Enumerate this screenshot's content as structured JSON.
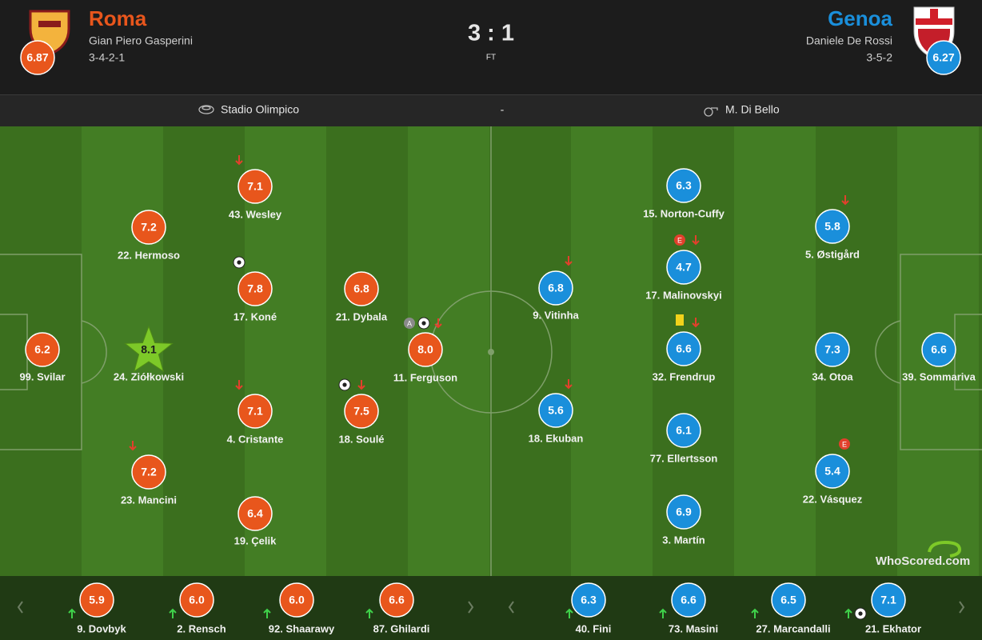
{
  "header": {
    "home": {
      "name": "Roma",
      "manager": "Gian Piero Gasperini",
      "formation": "3-4-2-1",
      "rating": "6.87"
    },
    "score": "3 : 1",
    "status": "FT",
    "away": {
      "name": "Genoa",
      "manager": "Daniele De Rossi",
      "formation": "3-5-2",
      "rating": "6.27"
    }
  },
  "info": {
    "venue": "Stadio Olimpico",
    "separator": "-",
    "referee": "M. Di Bello"
  },
  "home_players": [
    {
      "label": "99. Svilar",
      "rating": "6.2"
    },
    {
      "label": "24. Ziółkowski",
      "rating": "8.1"
    },
    {
      "label": "22. Hermoso",
      "rating": "7.2"
    },
    {
      "label": "23. Mancini",
      "rating": "7.2"
    },
    {
      "label": "43. Wesley",
      "rating": "7.1"
    },
    {
      "label": "17. Koné",
      "rating": "7.8"
    },
    {
      "label": "4. Cristante",
      "rating": "7.1"
    },
    {
      "label": "19. Çelik",
      "rating": "6.4"
    },
    {
      "label": "21. Dybala",
      "rating": "6.8"
    },
    {
      "label": "18. Soulé",
      "rating": "7.5"
    },
    {
      "label": "11. Ferguson",
      "rating": "8.0",
      "badge": "A"
    }
  ],
  "away_players": [
    {
      "label": "39. Sommariva",
      "rating": "6.6"
    },
    {
      "label": "34. Otoa",
      "rating": "7.3"
    },
    {
      "label": "5. Østigård",
      "rating": "5.8"
    },
    {
      "label": "22. Vásquez",
      "rating": "5.4",
      "badge": "E"
    },
    {
      "label": "15. Norton-Cuffy",
      "rating": "6.3"
    },
    {
      "label": "17. Malinovskyi",
      "rating": "4.7",
      "badge": "E"
    },
    {
      "label": "32. Frendrup",
      "rating": "6.6"
    },
    {
      "label": "77. Ellertsson",
      "rating": "6.1"
    },
    {
      "label": "3. Martín",
      "rating": "6.9"
    },
    {
      "label": "9. Vitinha",
      "rating": "6.8"
    },
    {
      "label": "18. Ekuban",
      "rating": "5.6"
    }
  ],
  "home_subs": [
    {
      "label": "9. Dovbyk",
      "rating": "5.9"
    },
    {
      "label": "2. Rensch",
      "rating": "6.0"
    },
    {
      "label": "92. Shaarawy",
      "rating": "6.0"
    },
    {
      "label": "87. Ghilardi",
      "rating": "6.6"
    }
  ],
  "away_subs": [
    {
      "label": "40. Fini",
      "rating": "6.3"
    },
    {
      "label": "73. Masini",
      "rating": "6.6"
    },
    {
      "label": "27. Marcandalli",
      "rating": "6.5"
    },
    {
      "label": "21. Ekhator",
      "rating": "7.1"
    }
  ],
  "watermark": "WhoScored.com"
}
